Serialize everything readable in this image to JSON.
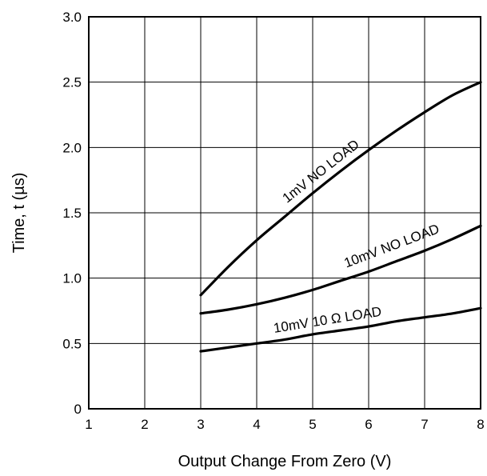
{
  "chart_data": {
    "type": "line",
    "xlabel": "Output Change From Zero (V)",
    "ylabel": "Time, t (µs)",
    "xlim": [
      1,
      8
    ],
    "ylim": [
      0,
      3.0
    ],
    "x_ticks": [
      {
        "value": 1,
        "label": "1"
      },
      {
        "value": 2,
        "label": "2"
      },
      {
        "value": 3,
        "label": "3"
      },
      {
        "value": 4,
        "label": "4"
      },
      {
        "value": 5,
        "label": "5"
      },
      {
        "value": 6,
        "label": "6"
      },
      {
        "value": 7,
        "label": "7"
      },
      {
        "value": 8,
        "label": "8"
      }
    ],
    "y_ticks": [
      {
        "value": 0,
        "label": "0"
      },
      {
        "value": 0.5,
        "label": "0.5"
      },
      {
        "value": 1.0,
        "label": "1.0"
      },
      {
        "value": 1.5,
        "label": "1.5"
      },
      {
        "value": 2.0,
        "label": "2.0"
      },
      {
        "value": 2.5,
        "label": "2.5"
      },
      {
        "value": 3.0,
        "label": "3.0"
      }
    ],
    "grid": true,
    "series": [
      {
        "name": "1mV NO LOAD",
        "x": [
          3,
          3.5,
          4,
          4.5,
          5,
          5.5,
          6,
          6.5,
          7,
          7.5,
          8
        ],
        "y": [
          0.87,
          1.09,
          1.29,
          1.47,
          1.65,
          1.82,
          1.98,
          2.13,
          2.27,
          2.4,
          2.5
        ]
      },
      {
        "name": "10mV NO LOAD",
        "x": [
          3,
          3.5,
          4,
          4.5,
          5,
          5.5,
          6,
          6.5,
          7,
          7.5,
          8
        ],
        "y": [
          0.73,
          0.76,
          0.8,
          0.85,
          0.91,
          0.98,
          1.05,
          1.13,
          1.21,
          1.3,
          1.4
        ]
      },
      {
        "name": "10mV  10 Ω LOAD",
        "x": [
          3,
          3.5,
          4,
          4.5,
          5,
          5.5,
          6,
          6.5,
          7,
          7.5,
          8
        ],
        "y": [
          0.44,
          0.47,
          0.5,
          0.53,
          0.57,
          0.6,
          0.63,
          0.67,
          0.7,
          0.73,
          0.77
        ]
      }
    ],
    "line_color": "#000000",
    "grid_color": "#000000"
  }
}
